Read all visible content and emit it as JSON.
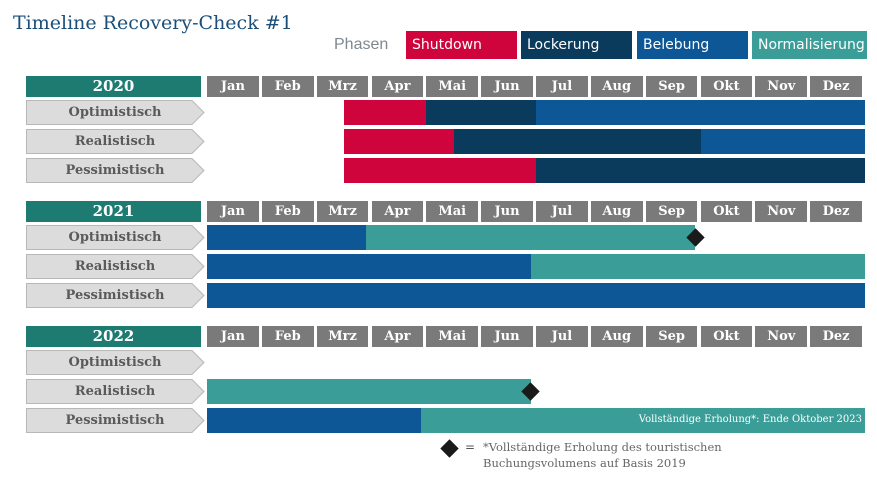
{
  "title": "Timeline Recovery-Check #1",
  "colors": {
    "shutdown": "#d0043c",
    "lockerung": "#0a3a5c",
    "belebung": "#0e5796",
    "normalisierung": "#3a9d98",
    "year_header": "#1e7b72",
    "month_header": "#7a7a7a",
    "diamond": "#1a1a1a"
  },
  "legend": {
    "label": "Phasen",
    "items": [
      {
        "key": "shutdown",
        "label": "Shutdown"
      },
      {
        "key": "lockerung",
        "label": "Lockerung"
      },
      {
        "key": "belebung",
        "label": "Belebung"
      },
      {
        "key": "normalisierung",
        "label": "Normalisierung"
      }
    ]
  },
  "months": [
    "Jan",
    "Feb",
    "Mrz",
    "Apr",
    "Mai",
    "Jun",
    "Jul",
    "Aug",
    "Sep",
    "Okt",
    "Nov",
    "Dez"
  ],
  "years": [
    {
      "year": "2020",
      "scenarios": [
        {
          "name": "Optimistisch",
          "segments": [
            {
              "phase": "shutdown",
              "start": 2.5,
              "end": 4.0
            },
            {
              "phase": "lockerung",
              "start": 4.0,
              "end": 6.0
            },
            {
              "phase": "belebung",
              "start": 6.0,
              "end": 12.0
            }
          ]
        },
        {
          "name": "Realistisch",
          "segments": [
            {
              "phase": "shutdown",
              "start": 2.5,
              "end": 4.5
            },
            {
              "phase": "lockerung",
              "start": 4.5,
              "end": 9.0
            },
            {
              "phase": "belebung",
              "start": 9.0,
              "end": 12.0
            }
          ]
        },
        {
          "name": "Pessimistisch",
          "segments": [
            {
              "phase": "shutdown",
              "start": 2.5,
              "end": 6.0
            },
            {
              "phase": "lockerung",
              "start": 6.0,
              "end": 12.0
            }
          ]
        }
      ]
    },
    {
      "year": "2021",
      "scenarios": [
        {
          "name": "Optimistisch",
          "segments": [
            {
              "phase": "belebung",
              "start": 0.0,
              "end": 2.9
            },
            {
              "phase": "normalisierung",
              "start": 2.9,
              "end": 8.9
            }
          ],
          "recovery_at": 8.9
        },
        {
          "name": "Realistisch",
          "segments": [
            {
              "phase": "belebung",
              "start": 0.0,
              "end": 5.9
            },
            {
              "phase": "normalisierung",
              "start": 5.9,
              "end": 12.0
            }
          ]
        },
        {
          "name": "Pessimistisch",
          "segments": [
            {
              "phase": "belebung",
              "start": 0.0,
              "end": 12.0
            }
          ]
        }
      ]
    },
    {
      "year": "2022",
      "scenarios": [
        {
          "name": "Optimistisch",
          "segments": []
        },
        {
          "name": "Realistisch",
          "segments": [
            {
              "phase": "normalisierung",
              "start": 0.0,
              "end": 5.9
            }
          ],
          "recovery_at": 5.9
        },
        {
          "name": "Pessimistisch",
          "segments": [
            {
              "phase": "belebung",
              "start": 0.0,
              "end": 3.9
            },
            {
              "phase": "normalisierung",
              "start": 3.9,
              "end": 12.0
            }
          ],
          "note": "Vollständige Erholung*: Ende Oktober 2023"
        }
      ]
    }
  ],
  "footnote": {
    "symbol": "=",
    "line1": "*Vollständige Erholung des touristischen",
    "line2": "Buchungsvolumens auf Basis 2019"
  }
}
